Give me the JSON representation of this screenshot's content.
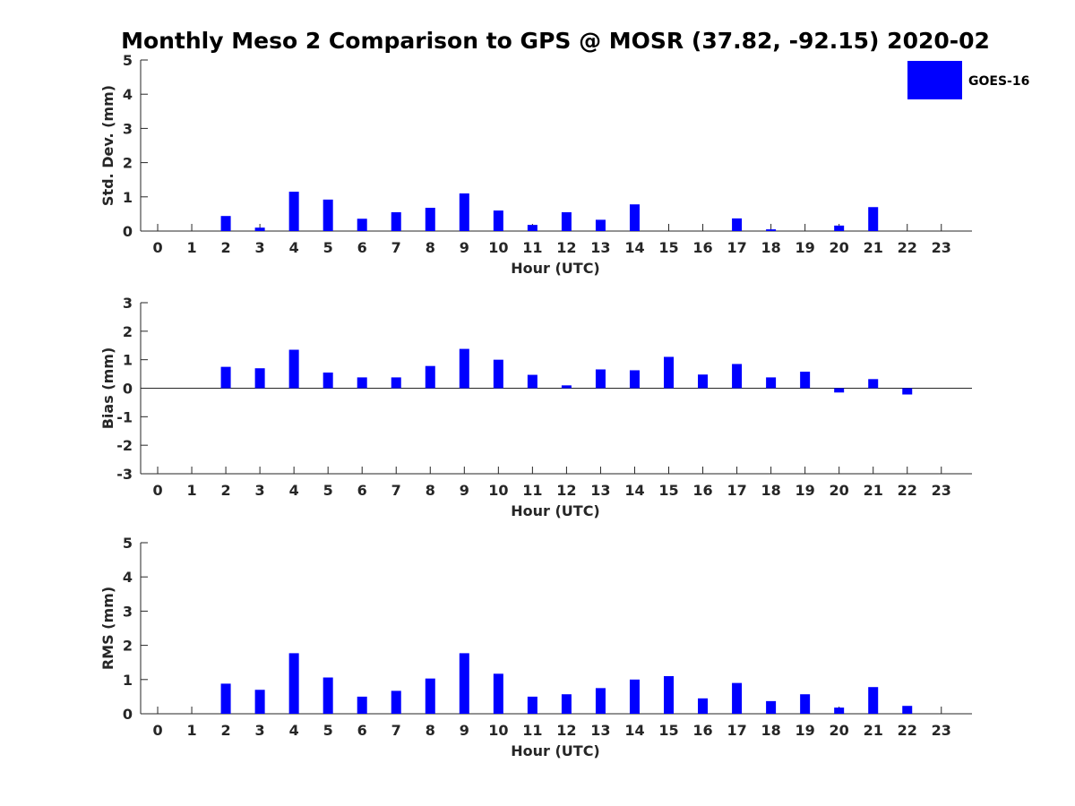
{
  "title": "Monthly Meso 2 Comparison to GPS @ MOSR (37.82, -92.15) 2020-02",
  "legend": {
    "label": "GOES-16",
    "color": "#0000ff",
    "position": "top-right"
  },
  "chart_data": [
    {
      "type": "bar",
      "title": "Monthly Meso 2 Comparison to GPS @ MOSR (37.82, -92.15) 2020-02",
      "xlabel": "Hour (UTC)",
      "ylabel": "Std. Dev. (mm)",
      "xlim": [
        -0.5,
        23.9
      ],
      "ylim": [
        0,
        5
      ],
      "yticks": [
        0,
        1,
        2,
        3,
        4,
        5
      ],
      "categories": [
        "0",
        "1",
        "2",
        "3",
        "4",
        "5",
        "6",
        "7",
        "8",
        "9",
        "10",
        "11",
        "12",
        "13",
        "14",
        "15",
        "16",
        "17",
        "18",
        "19",
        "20",
        "21",
        "22",
        "23"
      ],
      "series": [
        {
          "name": "GOES-16",
          "color": "#0000ff",
          "values": [
            0,
            0,
            0.44,
            0.1,
            1.15,
            0.92,
            0.36,
            0.55,
            0.68,
            1.1,
            0.6,
            0.18,
            0.55,
            0.33,
            0.78,
            0,
            0,
            0.37,
            0.05,
            0,
            0.16,
            0.7,
            0,
            0
          ]
        }
      ]
    },
    {
      "type": "bar",
      "xlabel": "Hour (UTC)",
      "ylabel": "Bias (mm)",
      "xlim": [
        -0.5,
        23.9
      ],
      "ylim": [
        -3,
        3
      ],
      "yticks": [
        -3,
        -2,
        -1,
        0,
        1,
        2,
        3
      ],
      "categories": [
        "0",
        "1",
        "2",
        "3",
        "4",
        "5",
        "6",
        "7",
        "8",
        "9",
        "10",
        "11",
        "12",
        "13",
        "14",
        "15",
        "16",
        "17",
        "18",
        "19",
        "20",
        "21",
        "22",
        "23"
      ],
      "series": [
        {
          "name": "GOES-16",
          "color": "#0000ff",
          "values": [
            0,
            0,
            0.75,
            0.7,
            1.35,
            0.55,
            0.38,
            0.38,
            0.78,
            1.38,
            1.0,
            0.47,
            0.1,
            0.66,
            0.63,
            1.1,
            0.48,
            0.85,
            0.38,
            0.58,
            -0.15,
            0.32,
            -0.22,
            0
          ]
        }
      ]
    },
    {
      "type": "bar",
      "xlabel": "Hour (UTC)",
      "ylabel": "RMS (mm)",
      "xlim": [
        -0.5,
        23.9
      ],
      "ylim": [
        0,
        5
      ],
      "yticks": [
        0,
        1,
        2,
        3,
        4,
        5
      ],
      "categories": [
        "0",
        "1",
        "2",
        "3",
        "4",
        "5",
        "6",
        "7",
        "8",
        "9",
        "10",
        "11",
        "12",
        "13",
        "14",
        "15",
        "16",
        "17",
        "18",
        "19",
        "20",
        "21",
        "22",
        "23"
      ],
      "series": [
        {
          "name": "GOES-16",
          "color": "#0000ff",
          "values": [
            0,
            0,
            0.88,
            0.7,
            1.77,
            1.06,
            0.5,
            0.67,
            1.03,
            1.77,
            1.17,
            0.5,
            0.57,
            0.75,
            1.0,
            1.1,
            0.45,
            0.9,
            0.37,
            0.57,
            0.18,
            0.78,
            0.23,
            0
          ]
        }
      ]
    }
  ]
}
